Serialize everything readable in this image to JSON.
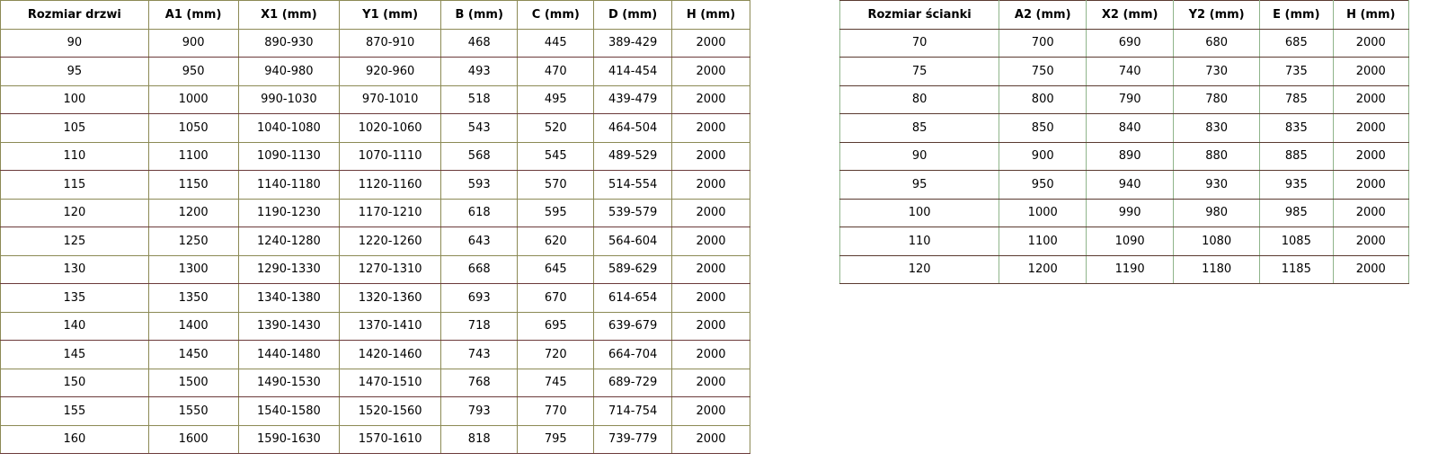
{
  "table1": {
    "headers": [
      "Rozmiar drzwi",
      "A1 (mm)",
      "X1 (mm)",
      "Y1 (mm)",
      "B (mm)",
      "C (mm)",
      "D (mm)",
      "H (mm)"
    ],
    "rows": [
      [
        "90",
        "900",
        "890-930",
        "870-910",
        "468",
        "445",
        "389-429",
        "2000"
      ],
      [
        "95",
        "950",
        "940-980",
        "920-960",
        "493",
        "470",
        "414-454",
        "2000"
      ],
      [
        "100",
        "1000",
        "990-1030",
        "970-1010",
        "518",
        "495",
        "439-479",
        "2000"
      ],
      [
        "105",
        "1050",
        "1040-1080",
        "1020-1060",
        "543",
        "520",
        "464-504",
        "2000"
      ],
      [
        "110",
        "1100",
        "1090-1130",
        "1070-1110",
        "568",
        "545",
        "489-529",
        "2000"
      ],
      [
        "115",
        "1150",
        "1140-1180",
        "1120-1160",
        "593",
        "570",
        "514-554",
        "2000"
      ],
      [
        "120",
        "1200",
        "1190-1230",
        "1170-1210",
        "618",
        "595",
        "539-579",
        "2000"
      ],
      [
        "125",
        "1250",
        "1240-1280",
        "1220-1260",
        "643",
        "620",
        "564-604",
        "2000"
      ],
      [
        "130",
        "1300",
        "1290-1330",
        "1270-1310",
        "668",
        "645",
        "589-629",
        "2000"
      ],
      [
        "135",
        "1350",
        "1340-1380",
        "1320-1360",
        "693",
        "670",
        "614-654",
        "2000"
      ],
      [
        "140",
        "1400",
        "1390-1430",
        "1370-1410",
        "718",
        "695",
        "639-679",
        "2000"
      ],
      [
        "145",
        "1450",
        "1440-1480",
        "1420-1460",
        "743",
        "720",
        "664-704",
        "2000"
      ],
      [
        "150",
        "1500",
        "1490-1530",
        "1470-1510",
        "768",
        "745",
        "689-729",
        "2000"
      ],
      [
        "155",
        "1550",
        "1540-1580",
        "1520-1560",
        "793",
        "770",
        "714-754",
        "2000"
      ],
      [
        "160",
        "1600",
        "1590-1630",
        "1570-1610",
        "818",
        "795",
        "739-779",
        "2000"
      ]
    ]
  },
  "table2": {
    "headers": [
      "Rozmiar ścianki",
      "A2 (mm)",
      "X2 (mm)",
      "Y2 (mm)",
      "E (mm)",
      "H (mm)"
    ],
    "rows": [
      [
        "70",
        "700",
        "690",
        "680",
        "685",
        "2000"
      ],
      [
        "75",
        "750",
        "740",
        "730",
        "735",
        "2000"
      ],
      [
        "80",
        "800",
        "790",
        "780",
        "785",
        "2000"
      ],
      [
        "85",
        "850",
        "840",
        "830",
        "835",
        "2000"
      ],
      [
        "90",
        "900",
        "890",
        "880",
        "885",
        "2000"
      ],
      [
        "95",
        "950",
        "940",
        "930",
        "935",
        "2000"
      ],
      [
        "100",
        "1000",
        "990",
        "980",
        "985",
        "2000"
      ],
      [
        "110",
        "1100",
        "1090",
        "1080",
        "1085",
        "2000"
      ],
      [
        "120",
        "1200",
        "1190",
        "1180",
        "1185",
        "2000"
      ]
    ]
  }
}
